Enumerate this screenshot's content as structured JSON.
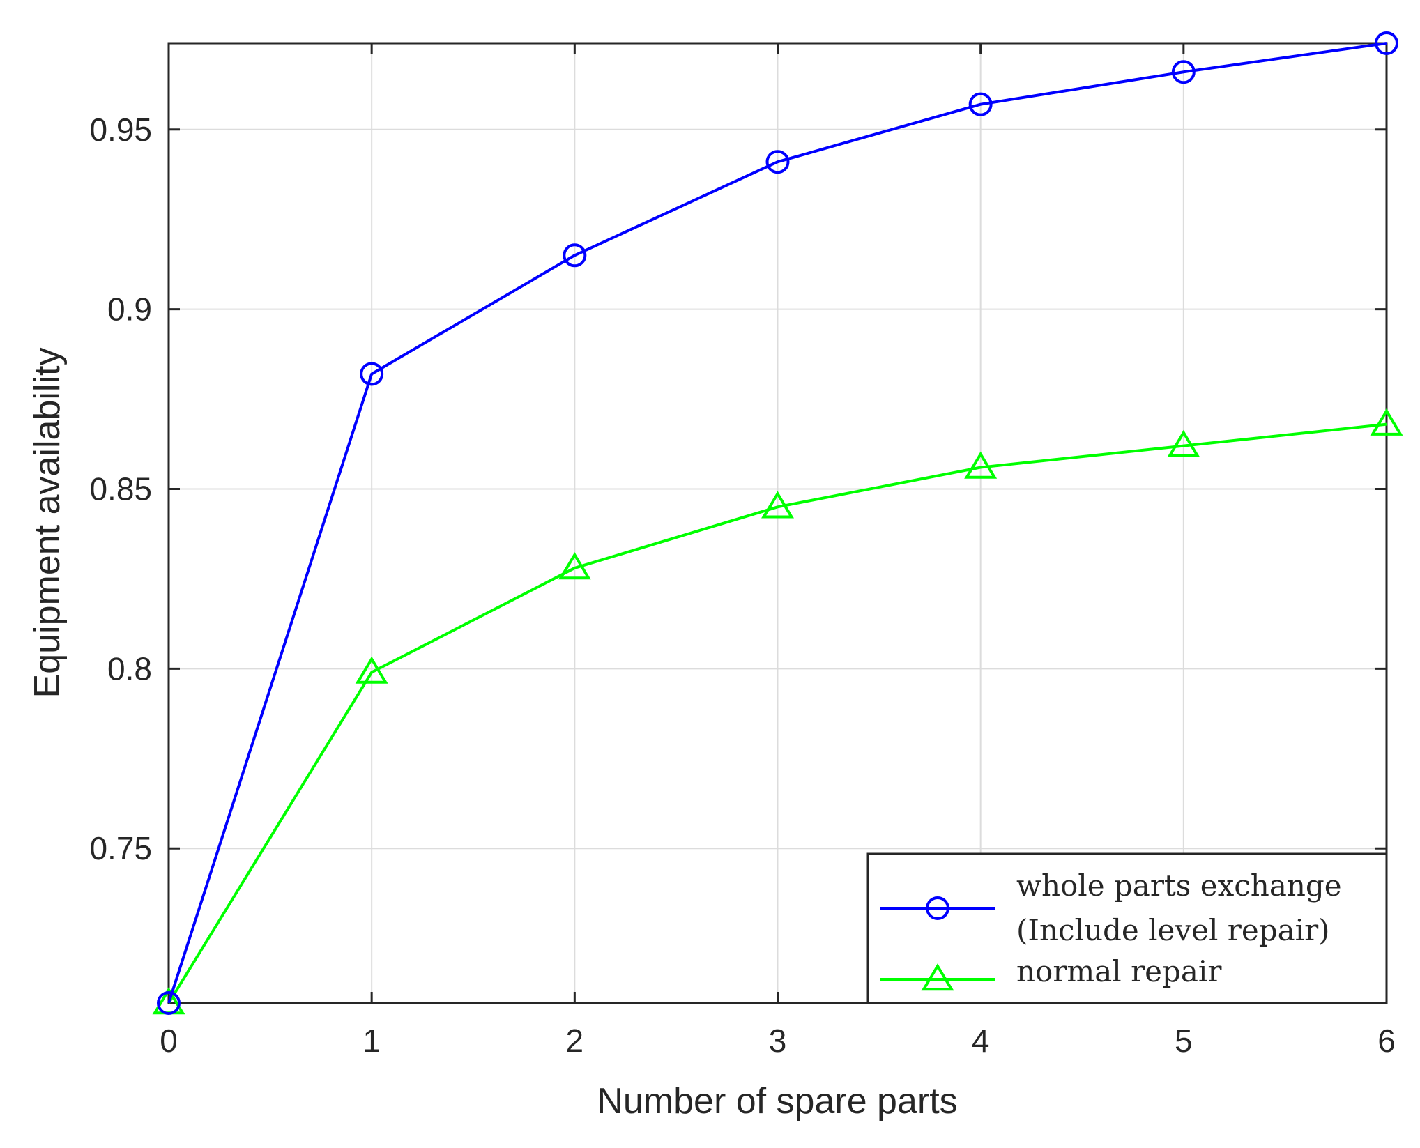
{
  "chart_data": {
    "type": "line",
    "title": "",
    "xlabel": "Number of spare parts",
    "ylabel": "Equipment availability",
    "x": [
      0,
      1,
      2,
      3,
      4,
      5,
      6
    ],
    "xlim": [
      0,
      6
    ],
    "ylim": [
      0.707,
      0.974
    ],
    "xticks": [
      "0",
      "1",
      "2",
      "3",
      "4",
      "5",
      "6"
    ],
    "yticks": [
      {
        "value": 0.75,
        "label": "0.75"
      },
      {
        "value": 0.8,
        "label": "0.8"
      },
      {
        "value": 0.85,
        "label": "0.85"
      },
      {
        "value": 0.9,
        "label": "0.9"
      },
      {
        "value": 0.95,
        "label": "0.95"
      }
    ],
    "grid": true,
    "legend_position": "bottom-right",
    "series": [
      {
        "name": "whole parts exchange (Include level repair)",
        "legend_lines": [
          "whole parts exchange",
          "(Include level repair)"
        ],
        "values": [
          0.707,
          0.882,
          0.915,
          0.941,
          0.957,
          0.966,
          0.974
        ],
        "color": "#0000ff",
        "marker": "circle"
      },
      {
        "name": "normal repair",
        "legend_lines": [
          "normal repair"
        ],
        "values": [
          0.707,
          0.799,
          0.828,
          0.845,
          0.856,
          0.862,
          0.868
        ],
        "color": "#00ff00",
        "marker": "triangle"
      }
    ]
  }
}
